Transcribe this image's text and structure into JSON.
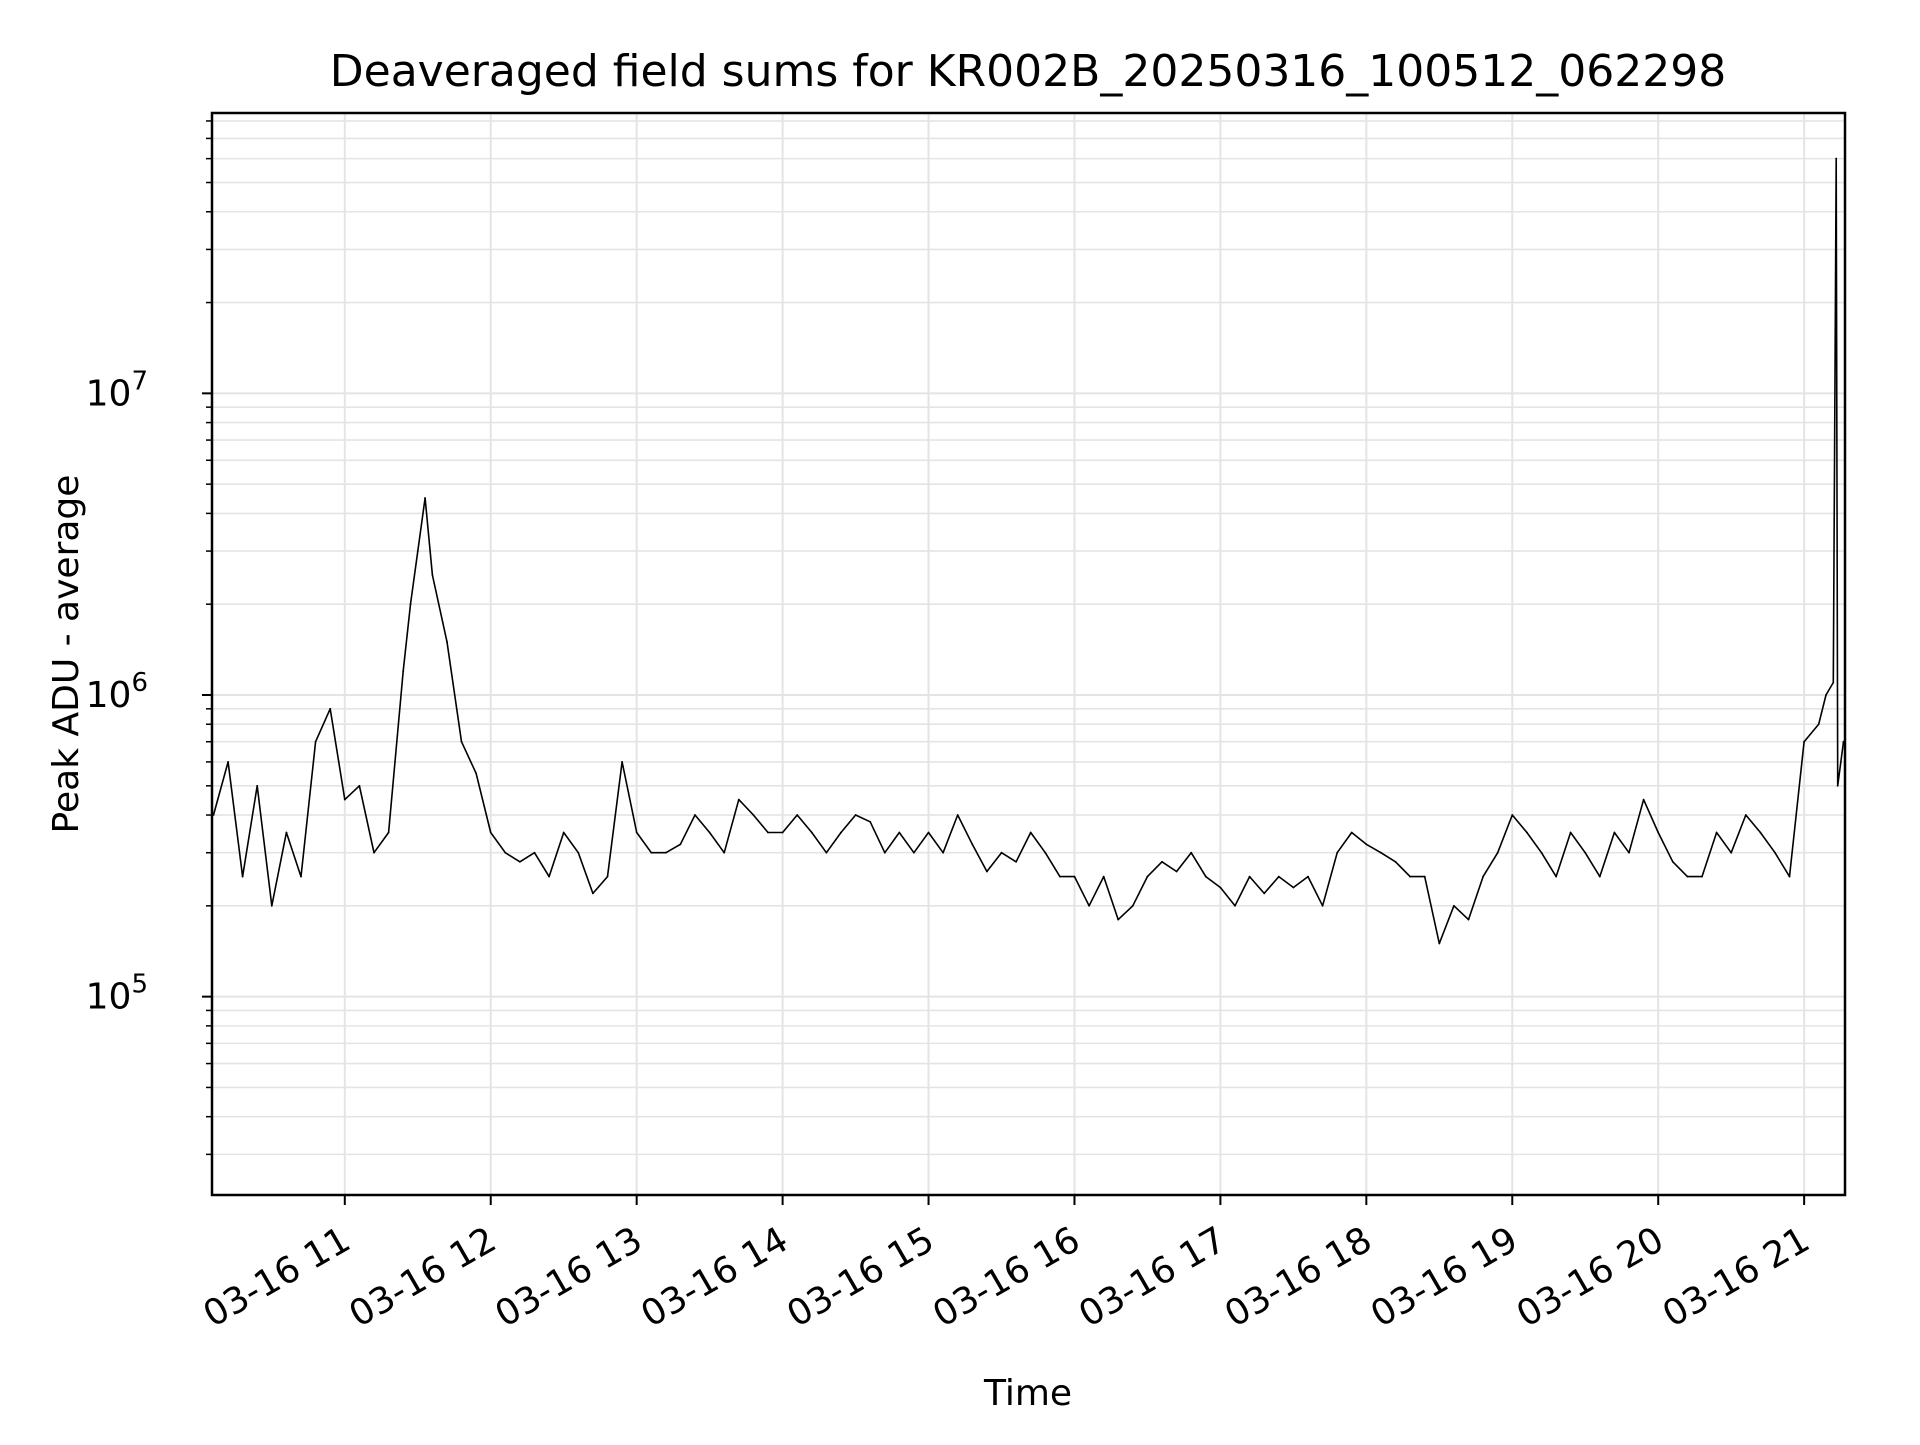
{
  "chart_data": {
    "type": "line",
    "title": "Deaveraged field sums for KR002B_20250316_100512_062298",
    "xlabel": "Time",
    "ylabel": "Peak ADU - average",
    "yscale": "log",
    "ylim": [
      22000,
      85000000
    ],
    "xlim_hours": [
      10.09,
      21.28
    ],
    "x_ticks": [
      {
        "hour": 11,
        "label": "03-16 11"
      },
      {
        "hour": 12,
        "label": "03-16 12"
      },
      {
        "hour": 13,
        "label": "03-16 13"
      },
      {
        "hour": 14,
        "label": "03-16 14"
      },
      {
        "hour": 15,
        "label": "03-16 15"
      },
      {
        "hour": 16,
        "label": "03-16 16"
      },
      {
        "hour": 17,
        "label": "03-16 17"
      },
      {
        "hour": 18,
        "label": "03-16 18"
      },
      {
        "hour": 19,
        "label": "03-16 19"
      },
      {
        "hour": 20,
        "label": "03-16 20"
      },
      {
        "hour": 21,
        "label": "03-16 21"
      }
    ],
    "y_ticks": [
      {
        "value": 100000,
        "base": "10",
        "exp": "5"
      },
      {
        "value": 1000000,
        "base": "10",
        "exp": "6"
      },
      {
        "value": 10000000,
        "base": "10",
        "exp": "7"
      }
    ],
    "grid": true,
    "line_color": "#000000",
    "series": [
      {
        "name": "deaveraged field sum",
        "points": [
          [
            10.1,
            400000
          ],
          [
            10.2,
            600000
          ],
          [
            10.3,
            250000
          ],
          [
            10.4,
            500000
          ],
          [
            10.5,
            200000
          ],
          [
            10.6,
            350000
          ],
          [
            10.7,
            250000
          ],
          [
            10.8,
            700000
          ],
          [
            10.9,
            900000
          ],
          [
            11.0,
            450000
          ],
          [
            11.1,
            500000
          ],
          [
            11.2,
            300000
          ],
          [
            11.3,
            350000
          ],
          [
            11.4,
            1200000
          ],
          [
            11.45,
            2000000
          ],
          [
            11.5,
            3000000
          ],
          [
            11.55,
            4500000
          ],
          [
            11.6,
            2500000
          ],
          [
            11.7,
            1500000
          ],
          [
            11.8,
            700000
          ],
          [
            11.9,
            550000
          ],
          [
            12.0,
            350000
          ],
          [
            12.1,
            300000
          ],
          [
            12.2,
            280000
          ],
          [
            12.3,
            300000
          ],
          [
            12.4,
            250000
          ],
          [
            12.5,
            350000
          ],
          [
            12.6,
            300000
          ],
          [
            12.7,
            220000
          ],
          [
            12.8,
            250000
          ],
          [
            12.9,
            600000
          ],
          [
            13.0,
            350000
          ],
          [
            13.1,
            300000
          ],
          [
            13.2,
            300000
          ],
          [
            13.3,
            320000
          ],
          [
            13.4,
            400000
          ],
          [
            13.5,
            350000
          ],
          [
            13.6,
            300000
          ],
          [
            13.7,
            450000
          ],
          [
            13.8,
            400000
          ],
          [
            13.9,
            350000
          ],
          [
            14.0,
            350000
          ],
          [
            14.1,
            400000
          ],
          [
            14.2,
            350000
          ],
          [
            14.3,
            300000
          ],
          [
            14.4,
            350000
          ],
          [
            14.5,
            400000
          ],
          [
            14.6,
            380000
          ],
          [
            14.7,
            300000
          ],
          [
            14.8,
            350000
          ],
          [
            14.9,
            300000
          ],
          [
            15.0,
            350000
          ],
          [
            15.1,
            300000
          ],
          [
            15.2,
            400000
          ],
          [
            15.3,
            320000
          ],
          [
            15.4,
            260000
          ],
          [
            15.5,
            300000
          ],
          [
            15.6,
            280000
          ],
          [
            15.7,
            350000
          ],
          [
            15.8,
            300000
          ],
          [
            15.9,
            250000
          ],
          [
            16.0,
            250000
          ],
          [
            16.1,
            200000
          ],
          [
            16.2,
            250000
          ],
          [
            16.3,
            180000
          ],
          [
            16.4,
            200000
          ],
          [
            16.5,
            250000
          ],
          [
            16.6,
            280000
          ],
          [
            16.7,
            260000
          ],
          [
            16.8,
            300000
          ],
          [
            16.9,
            250000
          ],
          [
            17.0,
            230000
          ],
          [
            17.1,
            200000
          ],
          [
            17.2,
            250000
          ],
          [
            17.3,
            220000
          ],
          [
            17.4,
            250000
          ],
          [
            17.5,
            230000
          ],
          [
            17.6,
            250000
          ],
          [
            17.7,
            200000
          ],
          [
            17.8,
            300000
          ],
          [
            17.9,
            350000
          ],
          [
            18.0,
            320000
          ],
          [
            18.1,
            300000
          ],
          [
            18.2,
            280000
          ],
          [
            18.3,
            250000
          ],
          [
            18.4,
            250000
          ],
          [
            18.5,
            150000
          ],
          [
            18.6,
            200000
          ],
          [
            18.7,
            180000
          ],
          [
            18.8,
            250000
          ],
          [
            18.9,
            300000
          ],
          [
            19.0,
            400000
          ],
          [
            19.1,
            350000
          ],
          [
            19.2,
            300000
          ],
          [
            19.3,
            250000
          ],
          [
            19.4,
            350000
          ],
          [
            19.5,
            300000
          ],
          [
            19.6,
            250000
          ],
          [
            19.7,
            350000
          ],
          [
            19.8,
            300000
          ],
          [
            19.9,
            450000
          ],
          [
            20.0,
            350000
          ],
          [
            20.1,
            280000
          ],
          [
            20.2,
            250000
          ],
          [
            20.3,
            250000
          ],
          [
            20.4,
            350000
          ],
          [
            20.5,
            300000
          ],
          [
            20.6,
            400000
          ],
          [
            20.7,
            350000
          ],
          [
            20.8,
            300000
          ],
          [
            20.9,
            250000
          ],
          [
            21.0,
            700000
          ],
          [
            21.1,
            800000
          ],
          [
            21.15,
            1000000
          ],
          [
            21.2,
            1100000
          ],
          [
            21.22,
            60000000
          ],
          [
            21.23,
            500000
          ],
          [
            21.27,
            700000
          ]
        ]
      }
    ]
  }
}
